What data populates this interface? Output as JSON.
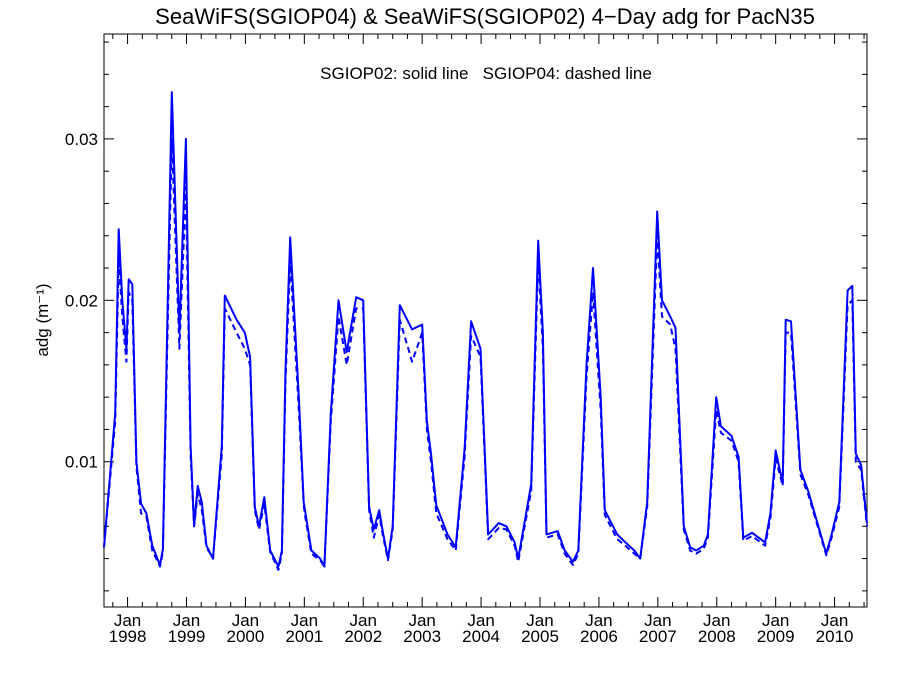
{
  "chart_data": {
    "type": "line",
    "title": "SeaWiFS(SGIOP04) & SeaWiFS(SGIOP02) 4−Day adg for PacN35",
    "ylabel": "adg (m⁻¹)",
    "annotation": "SGIOP02: solid line   SGIOP04: dashed line",
    "xlim": [
      1997.6,
      2010.55
    ],
    "ylim": [
      0.001,
      0.0365
    ],
    "yticks": [
      "0.01",
      "0.02",
      "0.03"
    ],
    "ytick_values": [
      0.01,
      0.02,
      0.03
    ],
    "xticks": [
      {
        "month": "Jan",
        "year": "1998",
        "value": 1998.0
      },
      {
        "month": "Jan",
        "year": "1999",
        "value": 1999.0
      },
      {
        "month": "Jan",
        "year": "2000",
        "value": 2000.0
      },
      {
        "month": "Jan",
        "year": "2001",
        "value": 2001.0
      },
      {
        "month": "Jan",
        "year": "2002",
        "value": 2002.0
      },
      {
        "month": "Jan",
        "year": "2003",
        "value": 2003.0
      },
      {
        "month": "Jan",
        "year": "2004",
        "value": 2004.0
      },
      {
        "month": "Jan",
        "year": "2005",
        "value": 2005.0
      },
      {
        "month": "Jan",
        "year": "2006",
        "value": 2006.0
      },
      {
        "month": "Jan",
        "year": "2007",
        "value": 2007.0
      },
      {
        "month": "Jan",
        "year": "2008",
        "value": 2008.0
      },
      {
        "month": "Jan",
        "year": "2009",
        "value": 2009.0
      },
      {
        "month": "Jan",
        "year": "2010",
        "value": 2010.0
      }
    ],
    "line_color": "#0000ff",
    "series": [
      {
        "style": "solid",
        "x": [
          1997.6,
          1997.79,
          1997.85,
          1997.91,
          1997.98,
          1998.02,
          1998.08,
          1998.15,
          1998.23,
          1998.32,
          1998.42,
          1998.55,
          1998.6,
          1998.66,
          1998.75,
          1998.88,
          1998.99,
          1999.07,
          1999.13,
          1999.19,
          1999.26,
          1999.34,
          1999.45,
          1999.6,
          1999.65,
          1999.85,
          1999.99,
          2000.08,
          2000.16,
          2000.23,
          2000.32,
          2000.42,
          2000.56,
          2000.62,
          2000.68,
          2000.76,
          2000.91,
          2000.99,
          2001.02,
          2001.12,
          2001.27,
          2001.34,
          2001.45,
          2001.58,
          2001.72,
          2001.88,
          2002.0,
          2002.1,
          2002.18,
          2002.27,
          2002.34,
          2002.42,
          2002.5,
          2002.62,
          2002.83,
          2003.0,
          2003.08,
          2003.15,
          2003.24,
          2003.43,
          2003.57,
          2003.72,
          2003.83,
          2003.99,
          2004.12,
          2004.3,
          2004.43,
          2004.57,
          2004.63,
          2004.85,
          2004.97,
          2005.05,
          2005.11,
          2005.3,
          2005.42,
          2005.56,
          2005.65,
          2005.79,
          2005.9,
          2006.03,
          2006.1,
          2006.31,
          2006.45,
          2006.6,
          2006.7,
          2006.82,
          2006.99,
          2007.07,
          2007.21,
          2007.3,
          2007.44,
          2007.55,
          2007.65,
          2007.78,
          2007.85,
          2007.99,
          2008.07,
          2008.25,
          2008.37,
          2008.45,
          2008.6,
          2008.82,
          2008.91,
          2009.0,
          2009.07,
          2009.12,
          2009.17,
          2009.26,
          2009.42,
          2009.55,
          2009.86,
          2009.95,
          2010.08,
          2010.22,
          2010.3,
          2010.36,
          2010.45,
          2010.55
        ],
        "values": [
          0.0047,
          0.013,
          0.0244,
          0.02,
          0.017,
          0.0213,
          0.021,
          0.01,
          0.0074,
          0.0068,
          0.0048,
          0.0036,
          0.0046,
          0.016,
          0.0329,
          0.018,
          0.03,
          0.011,
          0.006,
          0.0085,
          0.0075,
          0.0048,
          0.004,
          0.011,
          0.0203,
          0.0188,
          0.018,
          0.0165,
          0.0072,
          0.006,
          0.0078,
          0.0045,
          0.0035,
          0.0045,
          0.0157,
          0.0239,
          0.0138,
          0.0075,
          0.0068,
          0.0045,
          0.004,
          0.0035,
          0.013,
          0.02,
          0.0168,
          0.0202,
          0.02,
          0.0072,
          0.0058,
          0.007,
          0.0055,
          0.004,
          0.006,
          0.0197,
          0.0182,
          0.0185,
          0.0125,
          0.0105,
          0.0073,
          0.0055,
          0.0047,
          0.0108,
          0.0187,
          0.017,
          0.0055,
          0.0062,
          0.006,
          0.005,
          0.004,
          0.0086,
          0.0237,
          0.018,
          0.0055,
          0.0057,
          0.0045,
          0.0038,
          0.0045,
          0.016,
          0.022,
          0.014,
          0.007,
          0.0055,
          0.005,
          0.0045,
          0.004,
          0.0075,
          0.0255,
          0.02,
          0.019,
          0.0183,
          0.006,
          0.0047,
          0.0045,
          0.0048,
          0.0055,
          0.014,
          0.0122,
          0.0116,
          0.0103,
          0.0053,
          0.0056,
          0.005,
          0.0068,
          0.0107,
          0.0095,
          0.0087,
          0.0188,
          0.0187,
          0.0095,
          0.0082,
          0.0043,
          0.0055,
          0.0075,
          0.0206,
          0.0209,
          0.0105,
          0.0098,
          0.0062
        ]
      },
      {
        "style": "dashed",
        "x": [
          1997.6,
          1997.79,
          1997.85,
          1997.91,
          1997.98,
          1998.02,
          1998.08,
          1998.15,
          1998.23,
          1998.32,
          1998.42,
          1998.55,
          1998.6,
          1998.66,
          1998.75,
          1998.88,
          1998.99,
          1999.07,
          1999.13,
          1999.19,
          1999.26,
          1999.34,
          1999.45,
          1999.6,
          1999.65,
          1999.85,
          1999.99,
          2000.08,
          2000.16,
          2000.23,
          2000.32,
          2000.42,
          2000.56,
          2000.62,
          2000.68,
          2000.76,
          2000.91,
          2000.99,
          2001.02,
          2001.12,
          2001.27,
          2001.34,
          2001.45,
          2001.58,
          2001.72,
          2001.88,
          2002.0,
          2002.1,
          2002.18,
          2002.27,
          2002.34,
          2002.42,
          2002.5,
          2002.62,
          2002.83,
          2003.0,
          2003.08,
          2003.15,
          2003.24,
          2003.43,
          2003.57,
          2003.72,
          2003.83,
          2003.99,
          2004.12,
          2004.3,
          2004.43,
          2004.57,
          2004.63,
          2004.85,
          2004.97,
          2005.05,
          2005.11,
          2005.3,
          2005.42,
          2005.56,
          2005.65,
          2005.79,
          2005.9,
          2006.03,
          2006.1,
          2006.31,
          2006.45,
          2006.6,
          2006.7,
          2006.82,
          2006.99,
          2007.07,
          2007.21,
          2007.3,
          2007.44,
          2007.55,
          2007.65,
          2007.78,
          2007.85,
          2007.99,
          2008.07,
          2008.25,
          2008.37,
          2008.45,
          2008.6,
          2008.82,
          2008.91,
          2009.0,
          2009.07,
          2009.12,
          2009.17,
          2009.26,
          2009.42,
          2009.55,
          2009.86,
          2009.95,
          2010.08,
          2010.22,
          2010.3,
          2010.36,
          2010.45,
          2010.55
        ],
        "values": [
          0.0047,
          0.0125,
          0.0226,
          0.019,
          0.0162,
          0.0205,
          0.02,
          0.0097,
          0.0068,
          0.0066,
          0.0045,
          0.0035,
          0.0044,
          0.015,
          0.03,
          0.017,
          0.027,
          0.0104,
          0.006,
          0.008,
          0.007,
          0.0047,
          0.004,
          0.0104,
          0.0195,
          0.018,
          0.017,
          0.016,
          0.007,
          0.0058,
          0.0074,
          0.0044,
          0.0033,
          0.0043,
          0.015,
          0.0225,
          0.013,
          0.0073,
          0.0065,
          0.0043,
          0.0039,
          0.0035,
          0.0125,
          0.019,
          0.016,
          0.0195,
          0.0195,
          0.007,
          0.0053,
          0.0067,
          0.0053,
          0.0039,
          0.0058,
          0.0188,
          0.0162,
          0.018,
          0.012,
          0.01,
          0.0068,
          0.0052,
          0.0045,
          0.0103,
          0.0178,
          0.0165,
          0.0052,
          0.0059,
          0.0058,
          0.0048,
          0.0038,
          0.0082,
          0.0225,
          0.017,
          0.0053,
          0.0055,
          0.0043,
          0.0036,
          0.0043,
          0.0152,
          0.0205,
          0.0132,
          0.0067,
          0.0052,
          0.0048,
          0.0043,
          0.004,
          0.0072,
          0.024,
          0.019,
          0.0185,
          0.017,
          0.0058,
          0.0045,
          0.0043,
          0.0046,
          0.0053,
          0.0132,
          0.0118,
          0.0113,
          0.01,
          0.0051,
          0.0054,
          0.0048,
          0.0065,
          0.0102,
          0.0092,
          0.0085,
          0.018,
          0.018,
          0.0092,
          0.008,
          0.0042,
          0.0053,
          0.0072,
          0.0197,
          0.02,
          0.01,
          0.0095,
          0.006
        ]
      }
    ]
  }
}
